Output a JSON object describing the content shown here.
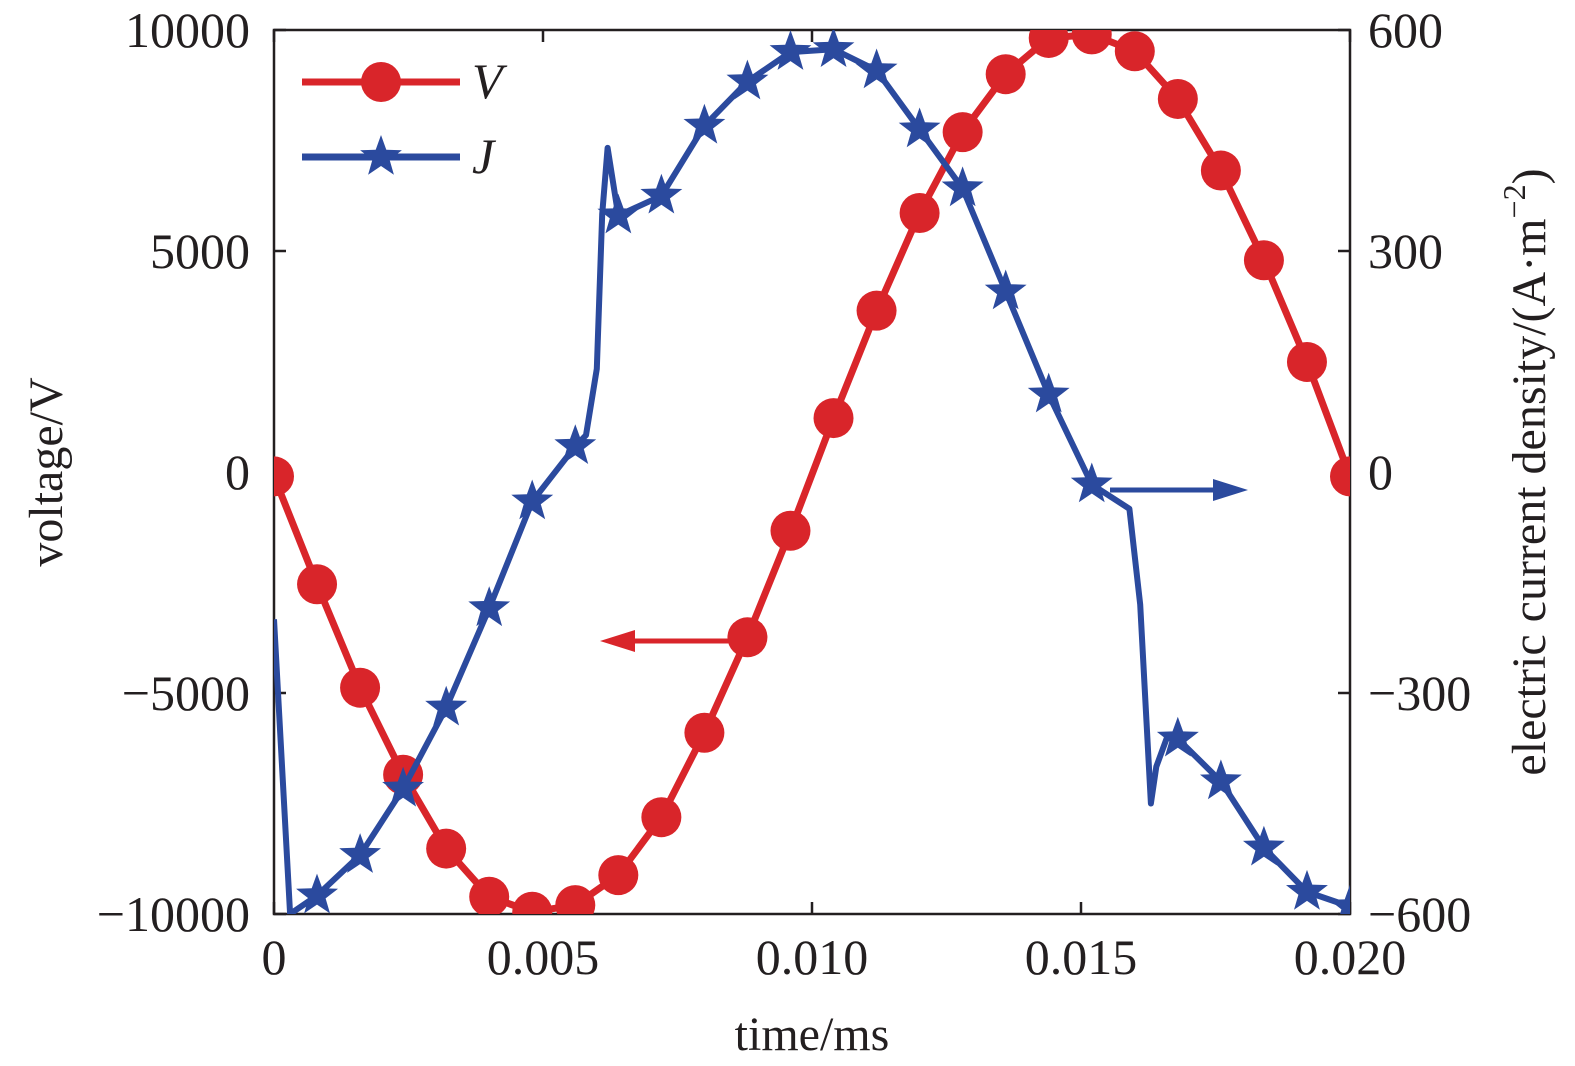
{
  "chart_data": {
    "type": "line",
    "xlabel": "time/ms",
    "ylabel": "voltage/V",
    "ylabel_right": "electric current density/(A·m",
    "ylabel_right_sup": "−2",
    "ylabel_right_close": ")",
    "xlim": [
      0,
      0.02
    ],
    "ylim": [
      -10000,
      10000
    ],
    "ylim_right": [
      -600,
      600
    ],
    "x_ticks": [
      0,
      0.005,
      0.01,
      0.015,
      0.02
    ],
    "x_tick_labels": [
      "0",
      "0.005",
      "0.010",
      "0.015",
      "0.020"
    ],
    "y_ticks": [
      -10000,
      -5000,
      0,
      5000,
      10000
    ],
    "y_tick_labels": [
      "−10000",
      "−5000",
      "0",
      "5000",
      "10000"
    ],
    "y_right_ticks": [
      -600,
      -300,
      0,
      300,
      600
    ],
    "y_right_tick_labels": [
      "−600",
      "−300",
      "0",
      "300",
      "600"
    ],
    "grid": false,
    "legend_position": "top-left",
    "series": [
      {
        "name": "V",
        "axis": "left",
        "color": "#d9252a",
        "marker": "circle",
        "x": [
          0,
          0.0008,
          0.0016,
          0.0024,
          0.0032,
          0.004,
          0.0048,
          0.0056,
          0.0064,
          0.0072,
          0.008,
          0.0088,
          0.0096,
          0.0104,
          0.0112,
          0.012,
          0.0128,
          0.0136,
          0.0144,
          0.0152,
          0.016,
          0.0168,
          0.0176,
          0.0184,
          0.0192,
          0.02
        ],
        "values": [
          -100,
          -2540,
          -4880,
          -6850,
          -8520,
          -9610,
          -9950,
          -9800,
          -9120,
          -7810,
          -5900,
          -3740,
          -1330,
          1220,
          3650,
          5860,
          7690,
          9000,
          9820,
          9900,
          9520,
          8440,
          6820,
          4790,
          2490,
          -100
        ]
      },
      {
        "name": "J",
        "axis": "right",
        "color": "#2b4a9e",
        "marker": "star",
        "x": [
          0,
          0.0003,
          0.0008,
          0.0016,
          0.0024,
          0.0032,
          0.004,
          0.0048,
          0.0056,
          0.0058,
          0.006,
          0.0061,
          0.0062,
          0.0064,
          0.0072,
          0.008,
          0.0088,
          0.0096,
          0.0104,
          0.0112,
          0.012,
          0.0128,
          0.0136,
          0.0144,
          0.0152,
          0.0159,
          0.0161,
          0.0163,
          0.0164,
          0.0166,
          0.0168,
          0.0176,
          0.0184,
          0.0192,
          0.02
        ],
        "values": [
          -200,
          -600,
          -575,
          -520,
          -430,
          -320,
          -185,
          -40,
          35,
          50,
          140,
          350,
          440,
          348,
          375,
          470,
          530,
          570,
          574,
          545,
          465,
          385,
          245,
          105,
          -17,
          -50,
          -180,
          -450,
          -400,
          -360,
          -362,
          -420,
          -510,
          -570,
          -590
        ]
      }
    ],
    "annotations": [
      {
        "type": "arrow",
        "direction": "left",
        "color": "#d9252a",
        "meaning": "voltage series uses left axis"
      },
      {
        "type": "arrow",
        "direction": "right",
        "color": "#2b4a9e",
        "meaning": "current density series uses right axis"
      }
    ]
  }
}
